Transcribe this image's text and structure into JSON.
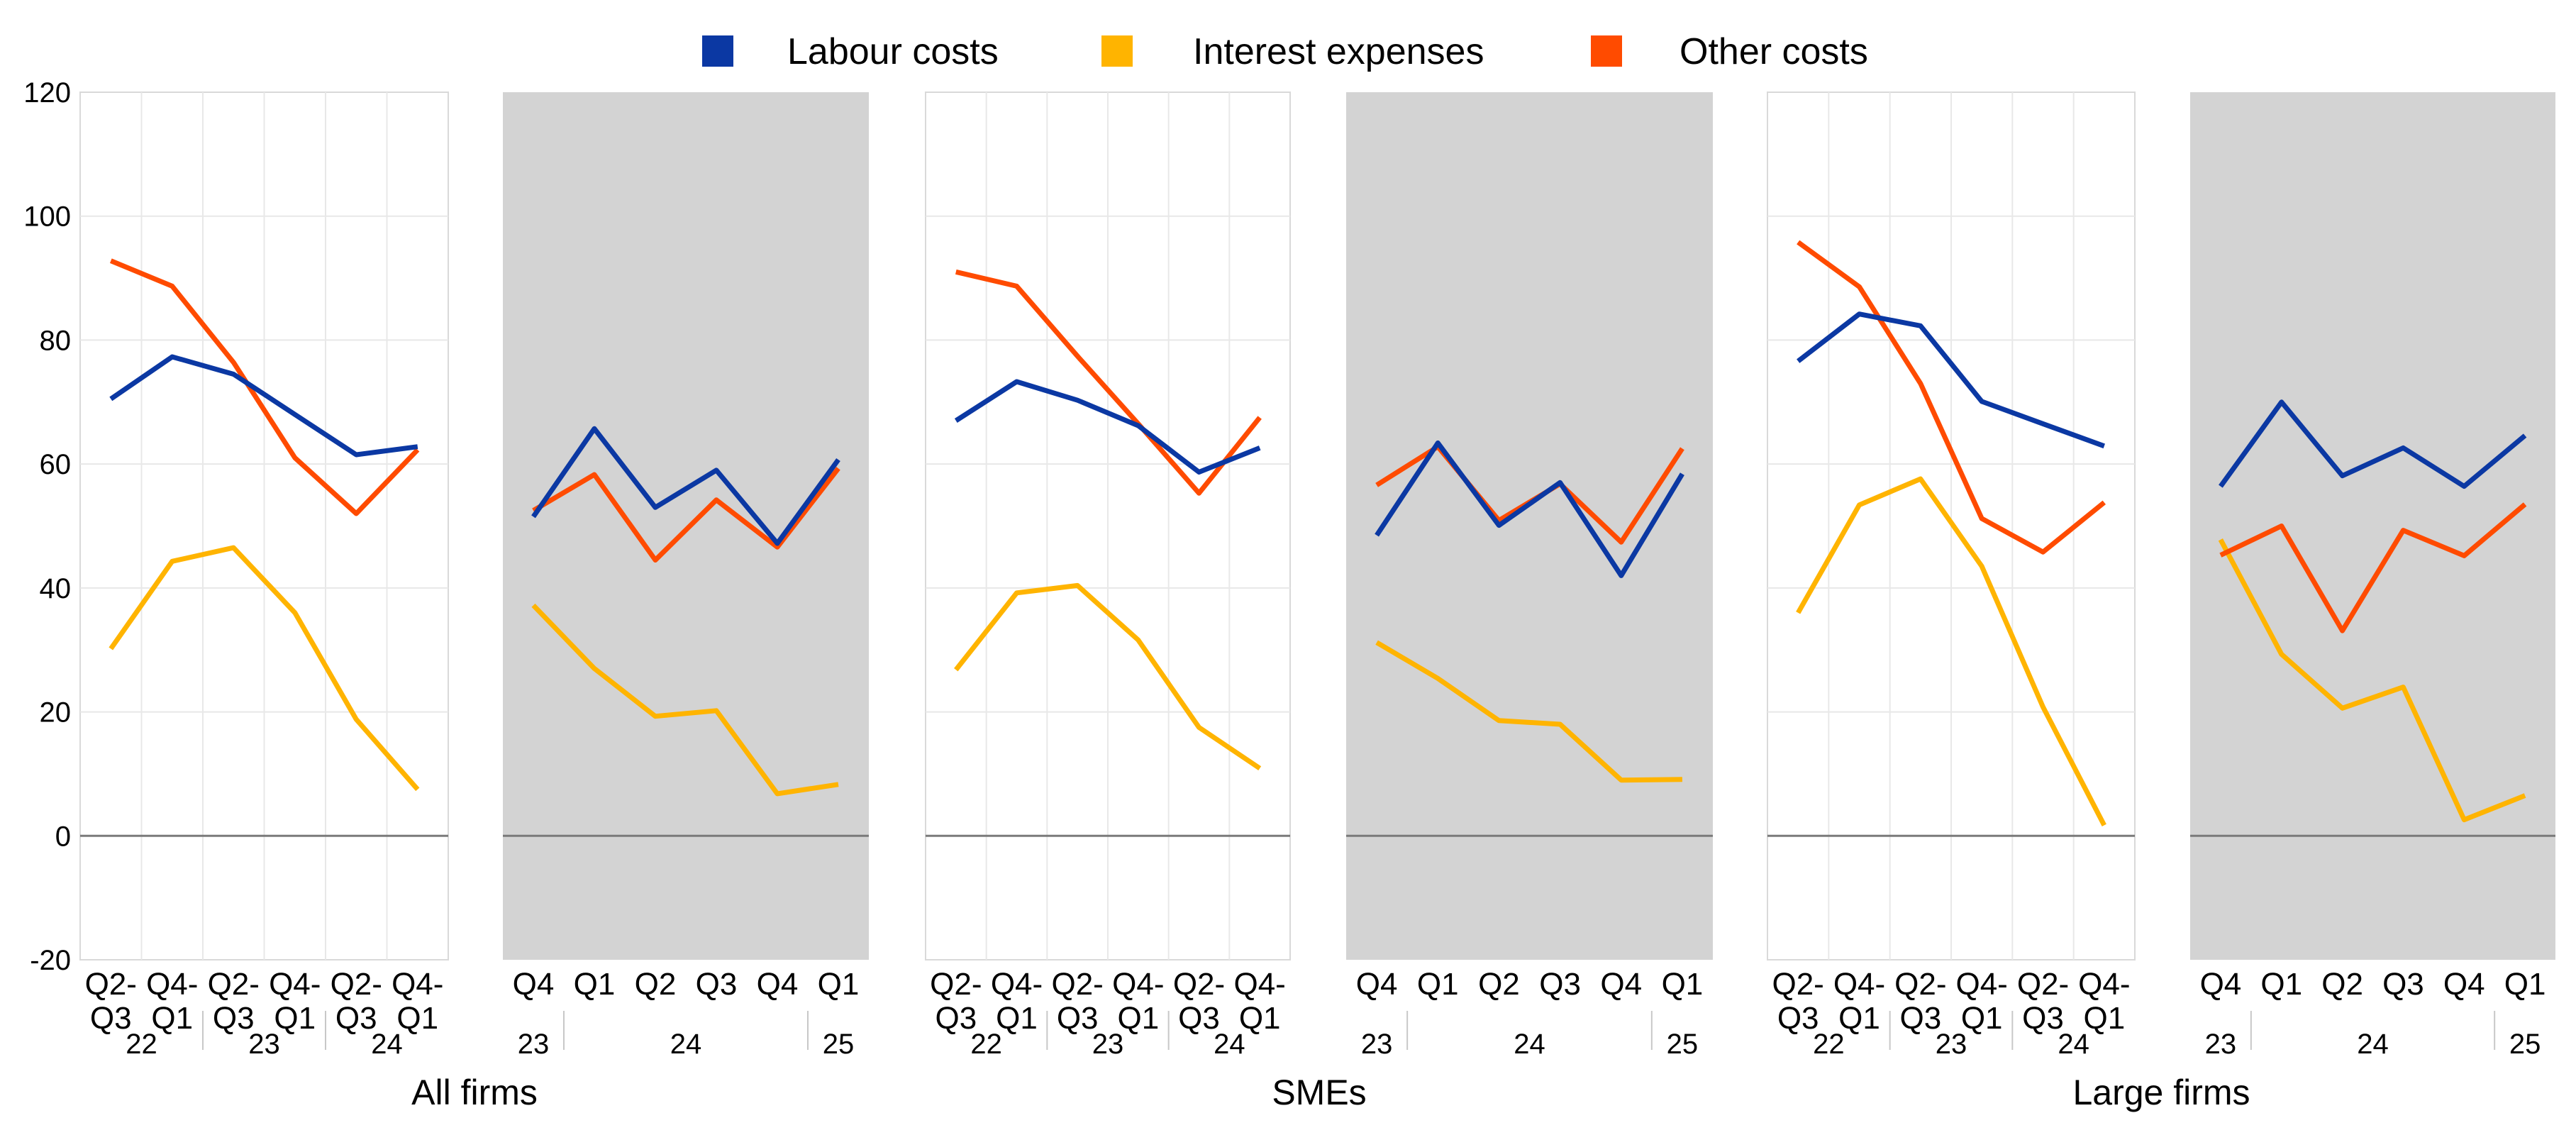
{
  "chart_data": {
    "type": "line",
    "y_axis": {
      "min": -20,
      "max": 120,
      "ticks": [
        -20,
        0,
        20,
        40,
        60,
        80,
        100,
        120
      ]
    },
    "series_meta": [
      {
        "key": "labour",
        "name": "Labour costs",
        "color": "#0b38a3"
      },
      {
        "key": "interest",
        "name": "Interest expenses",
        "color": "#ffb400"
      },
      {
        "key": "other",
        "name": "Other costs",
        "color": "#ff4b00"
      }
    ],
    "groups": [
      {
        "title": "All firms",
        "panels": [
          {
            "shaded": false,
            "categories": [
              [
                "Q2-",
                "Q3"
              ],
              [
                "Q4-",
                "Q1"
              ],
              [
                "Q2-",
                "Q3"
              ],
              [
                "Q4-",
                "Q1"
              ],
              [
                "Q2-",
                "Q3"
              ],
              [
                "Q4-",
                "Q1"
              ]
            ],
            "year_labels": [
              {
                "label": "22",
                "from": 0,
                "to": 1
              },
              {
                "label": "23",
                "from": 2,
                "to": 3
              },
              {
                "label": "24",
                "from": 4,
                "to": 5
              }
            ],
            "values": {
              "labour": [
                70.5,
                77.3,
                74.5,
                68,
                61.5,
                62.8
              ],
              "interest": [
                30.2,
                44.3,
                46.5,
                36,
                18.8,
                7.5
              ],
              "other": [
                92.8,
                88.7,
                76.4,
                61,
                52,
                62.3
              ]
            }
          },
          {
            "shaded": true,
            "categories": [
              [
                "Q4"
              ],
              [
                "Q1"
              ],
              [
                "Q2"
              ],
              [
                "Q3"
              ],
              [
                "Q4"
              ],
              [
                "Q1"
              ]
            ],
            "year_labels": [
              {
                "label": "23",
                "from": 0,
                "to": 0
              },
              {
                "label": "24",
                "from": 1,
                "to": 4
              },
              {
                "label": "25",
                "from": 5,
                "to": 5
              }
            ],
            "values": {
              "labour": [
                51.5,
                65.7,
                53,
                59,
                47.2,
                60.7
              ],
              "interest": [
                37.2,
                27,
                19.3,
                20.2,
                6.8,
                8.3
              ],
              "other": [
                52.5,
                58.3,
                44.5,
                54.2,
                46.6,
                59.3
              ]
            }
          }
        ]
      },
      {
        "title": "SMEs",
        "panels": [
          {
            "shaded": false,
            "categories": [
              [
                "Q2-",
                "Q3"
              ],
              [
                "Q4-",
                "Q1"
              ],
              [
                "Q2-",
                "Q3"
              ],
              [
                "Q4-",
                "Q1"
              ],
              [
                "Q2-",
                "Q3"
              ],
              [
                "Q4-",
                "Q1"
              ]
            ],
            "year_labels": [
              {
                "label": "22",
                "from": 0,
                "to": 1
              },
              {
                "label": "23",
                "from": 2,
                "to": 3
              },
              {
                "label": "24",
                "from": 4,
                "to": 5
              }
            ],
            "values": {
              "labour": [
                67,
                73.3,
                70.3,
                66.2,
                58.7,
                62.6
              ],
              "interest": [
                26.8,
                39.2,
                40.4,
                31.6,
                17.5,
                10.9
              ],
              "other": [
                91,
                88.7,
                77.4,
                66.5,
                55.3,
                67.5
              ]
            }
          },
          {
            "shaded": true,
            "categories": [
              [
                "Q4"
              ],
              [
                "Q1"
              ],
              [
                "Q2"
              ],
              [
                "Q3"
              ],
              [
                "Q4"
              ],
              [
                "Q1"
              ]
            ],
            "year_labels": [
              {
                "label": "23",
                "from": 0,
                "to": 0
              },
              {
                "label": "24",
                "from": 1,
                "to": 4
              },
              {
                "label": "25",
                "from": 5,
                "to": 5
              }
            ],
            "values": {
              "labour": [
                48.5,
                63.4,
                50.1,
                57,
                42,
                58.4
              ],
              "interest": [
                31.2,
                25.4,
                18.6,
                18,
                9,
                9.1
              ],
              "other": [
                56.6,
                62.8,
                50.9,
                56.8,
                47.4,
                62.5
              ]
            }
          }
        ]
      },
      {
        "title": "Large firms",
        "panels": [
          {
            "shaded": false,
            "categories": [
              [
                "Q2-",
                "Q3"
              ],
              [
                "Q4-",
                "Q1"
              ],
              [
                "Q2-",
                "Q3"
              ],
              [
                "Q4-",
                "Q1"
              ],
              [
                "Q2-",
                "Q3"
              ],
              [
                "Q4-",
                "Q1"
              ]
            ],
            "year_labels": [
              {
                "label": "22",
                "from": 0,
                "to": 1
              },
              {
                "label": "23",
                "from": 2,
                "to": 3
              },
              {
                "label": "24",
                "from": 4,
                "to": 5
              }
            ],
            "values": {
              "labour": [
                76.6,
                84.2,
                82.3,
                70.1,
                66.5,
                62.9
              ],
              "interest": [
                36,
                53.4,
                57.6,
                43.5,
                20.8,
                1.7
              ],
              "other": [
                95.8,
                88.6,
                73,
                51.2,
                45.8,
                53.8
              ]
            }
          },
          {
            "shaded": true,
            "categories": [
              [
                "Q4"
              ],
              [
                "Q1"
              ],
              [
                "Q2"
              ],
              [
                "Q3"
              ],
              [
                "Q4"
              ],
              [
                "Q1"
              ]
            ],
            "year_labels": [
              {
                "label": "23",
                "from": 0,
                "to": 0
              },
              {
                "label": "24",
                "from": 1,
                "to": 4
              },
              {
                "label": "25",
                "from": 5,
                "to": 5
              }
            ],
            "values": {
              "labour": [
                56.4,
                70,
                58.1,
                62.6,
                56.4,
                64.6
              ],
              "interest": [
                47.8,
                29.3,
                20.6,
                24,
                2.6,
                6.5
              ],
              "other": [
                45.3,
                50,
                33.1,
                49.3,
                45.2,
                53.5
              ]
            }
          }
        ]
      }
    ]
  }
}
